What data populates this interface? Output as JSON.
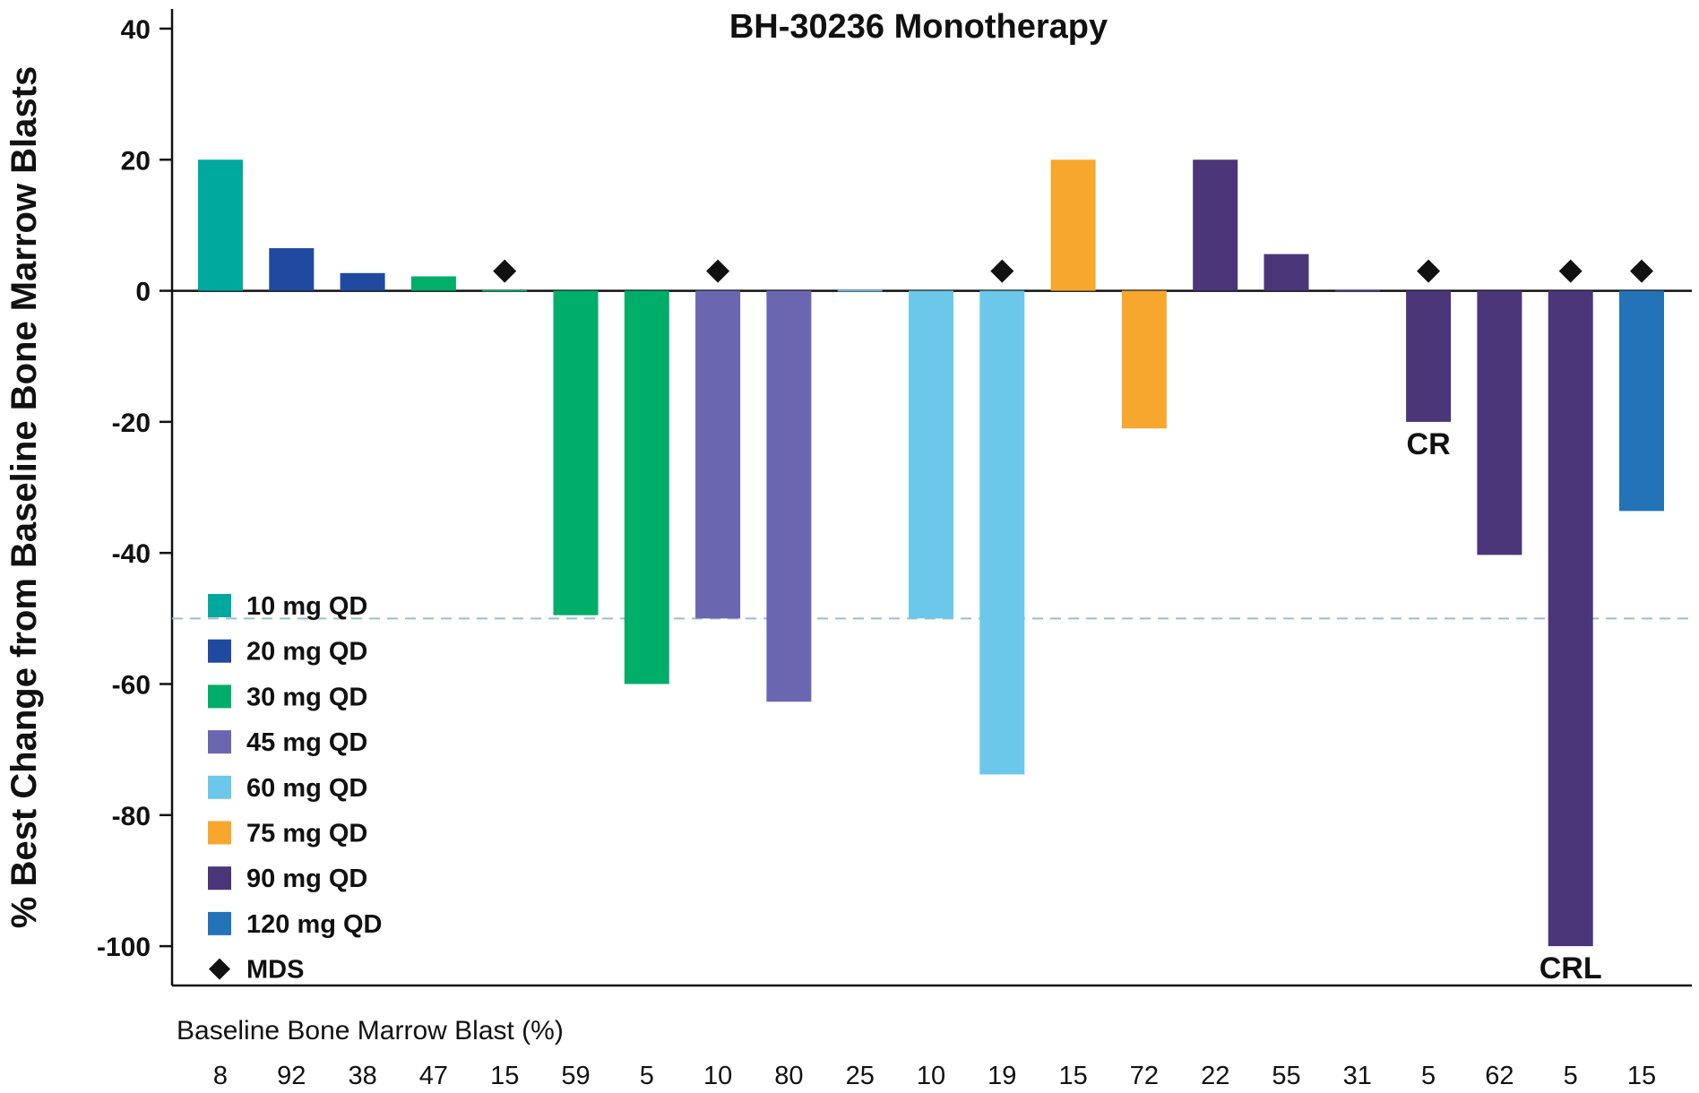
{
  "chart_data": {
    "type": "bar",
    "title": "BH-30236 Monotherapy",
    "ylabel": "% Best Change from Baseline Bone Marrow Blasts",
    "xlabel": "Baseline Bone Marrow Blast (%)",
    "ylim": [
      -106,
      43
    ],
    "yticks": [
      40,
      20,
      0,
      -20,
      -40,
      -60,
      -80,
      -100
    ],
    "reference_line": -50,
    "legend_position": "bottom-left",
    "grid": false,
    "categories": [
      "8",
      "92",
      "38",
      "47",
      "15",
      "59",
      "5",
      "10",
      "80",
      "25",
      "10",
      "19",
      "15",
      "72",
      "22",
      "55",
      "31",
      "5",
      "62",
      "5",
      "15"
    ],
    "values": [
      20,
      6.5,
      2.7,
      2.2,
      0,
      -49.5,
      -60,
      -50,
      -62.7,
      0,
      -50,
      -73.8,
      20,
      -21,
      20,
      5.6,
      0,
      -20,
      -40.3,
      -100,
      -33.6
    ],
    "dose_group": [
      "10 mg QD",
      "20 mg QD",
      "20 mg QD",
      "30 mg QD",
      "30 mg QD",
      "30 mg QD",
      "30 mg QD",
      "45 mg QD",
      "45 mg QD",
      "60 mg QD",
      "60 mg QD",
      "60 mg QD",
      "75 mg QD",
      "75 mg QD",
      "90 mg QD",
      "90 mg QD",
      "90 mg QD",
      "90 mg QD",
      "90 mg QD",
      "90 mg QD",
      "120 mg QD"
    ],
    "mds": [
      false,
      false,
      false,
      false,
      true,
      false,
      false,
      true,
      false,
      false,
      false,
      true,
      false,
      false,
      false,
      false,
      false,
      true,
      false,
      true,
      true
    ],
    "annotations": [
      {
        "index": 17,
        "text": "CR"
      },
      {
        "index": 19,
        "text": "CRL"
      }
    ],
    "series": [
      {
        "name": "10 mg QD",
        "color": "#00a99d"
      },
      {
        "name": "20 mg QD",
        "color": "#1f4aa0"
      },
      {
        "name": "30 mg QD",
        "color": "#00ad69"
      },
      {
        "name": "45 mg QD",
        "color": "#6a66b0"
      },
      {
        "name": "60 mg QD",
        "color": "#6cc8ea"
      },
      {
        "name": "75 mg QD",
        "color": "#f7a72d"
      },
      {
        "name": "90 mg QD",
        "color": "#4a3679"
      },
      {
        "name": "120 mg QD",
        "color": "#2473b9"
      }
    ],
    "mds_legend_label": "MDS"
  }
}
